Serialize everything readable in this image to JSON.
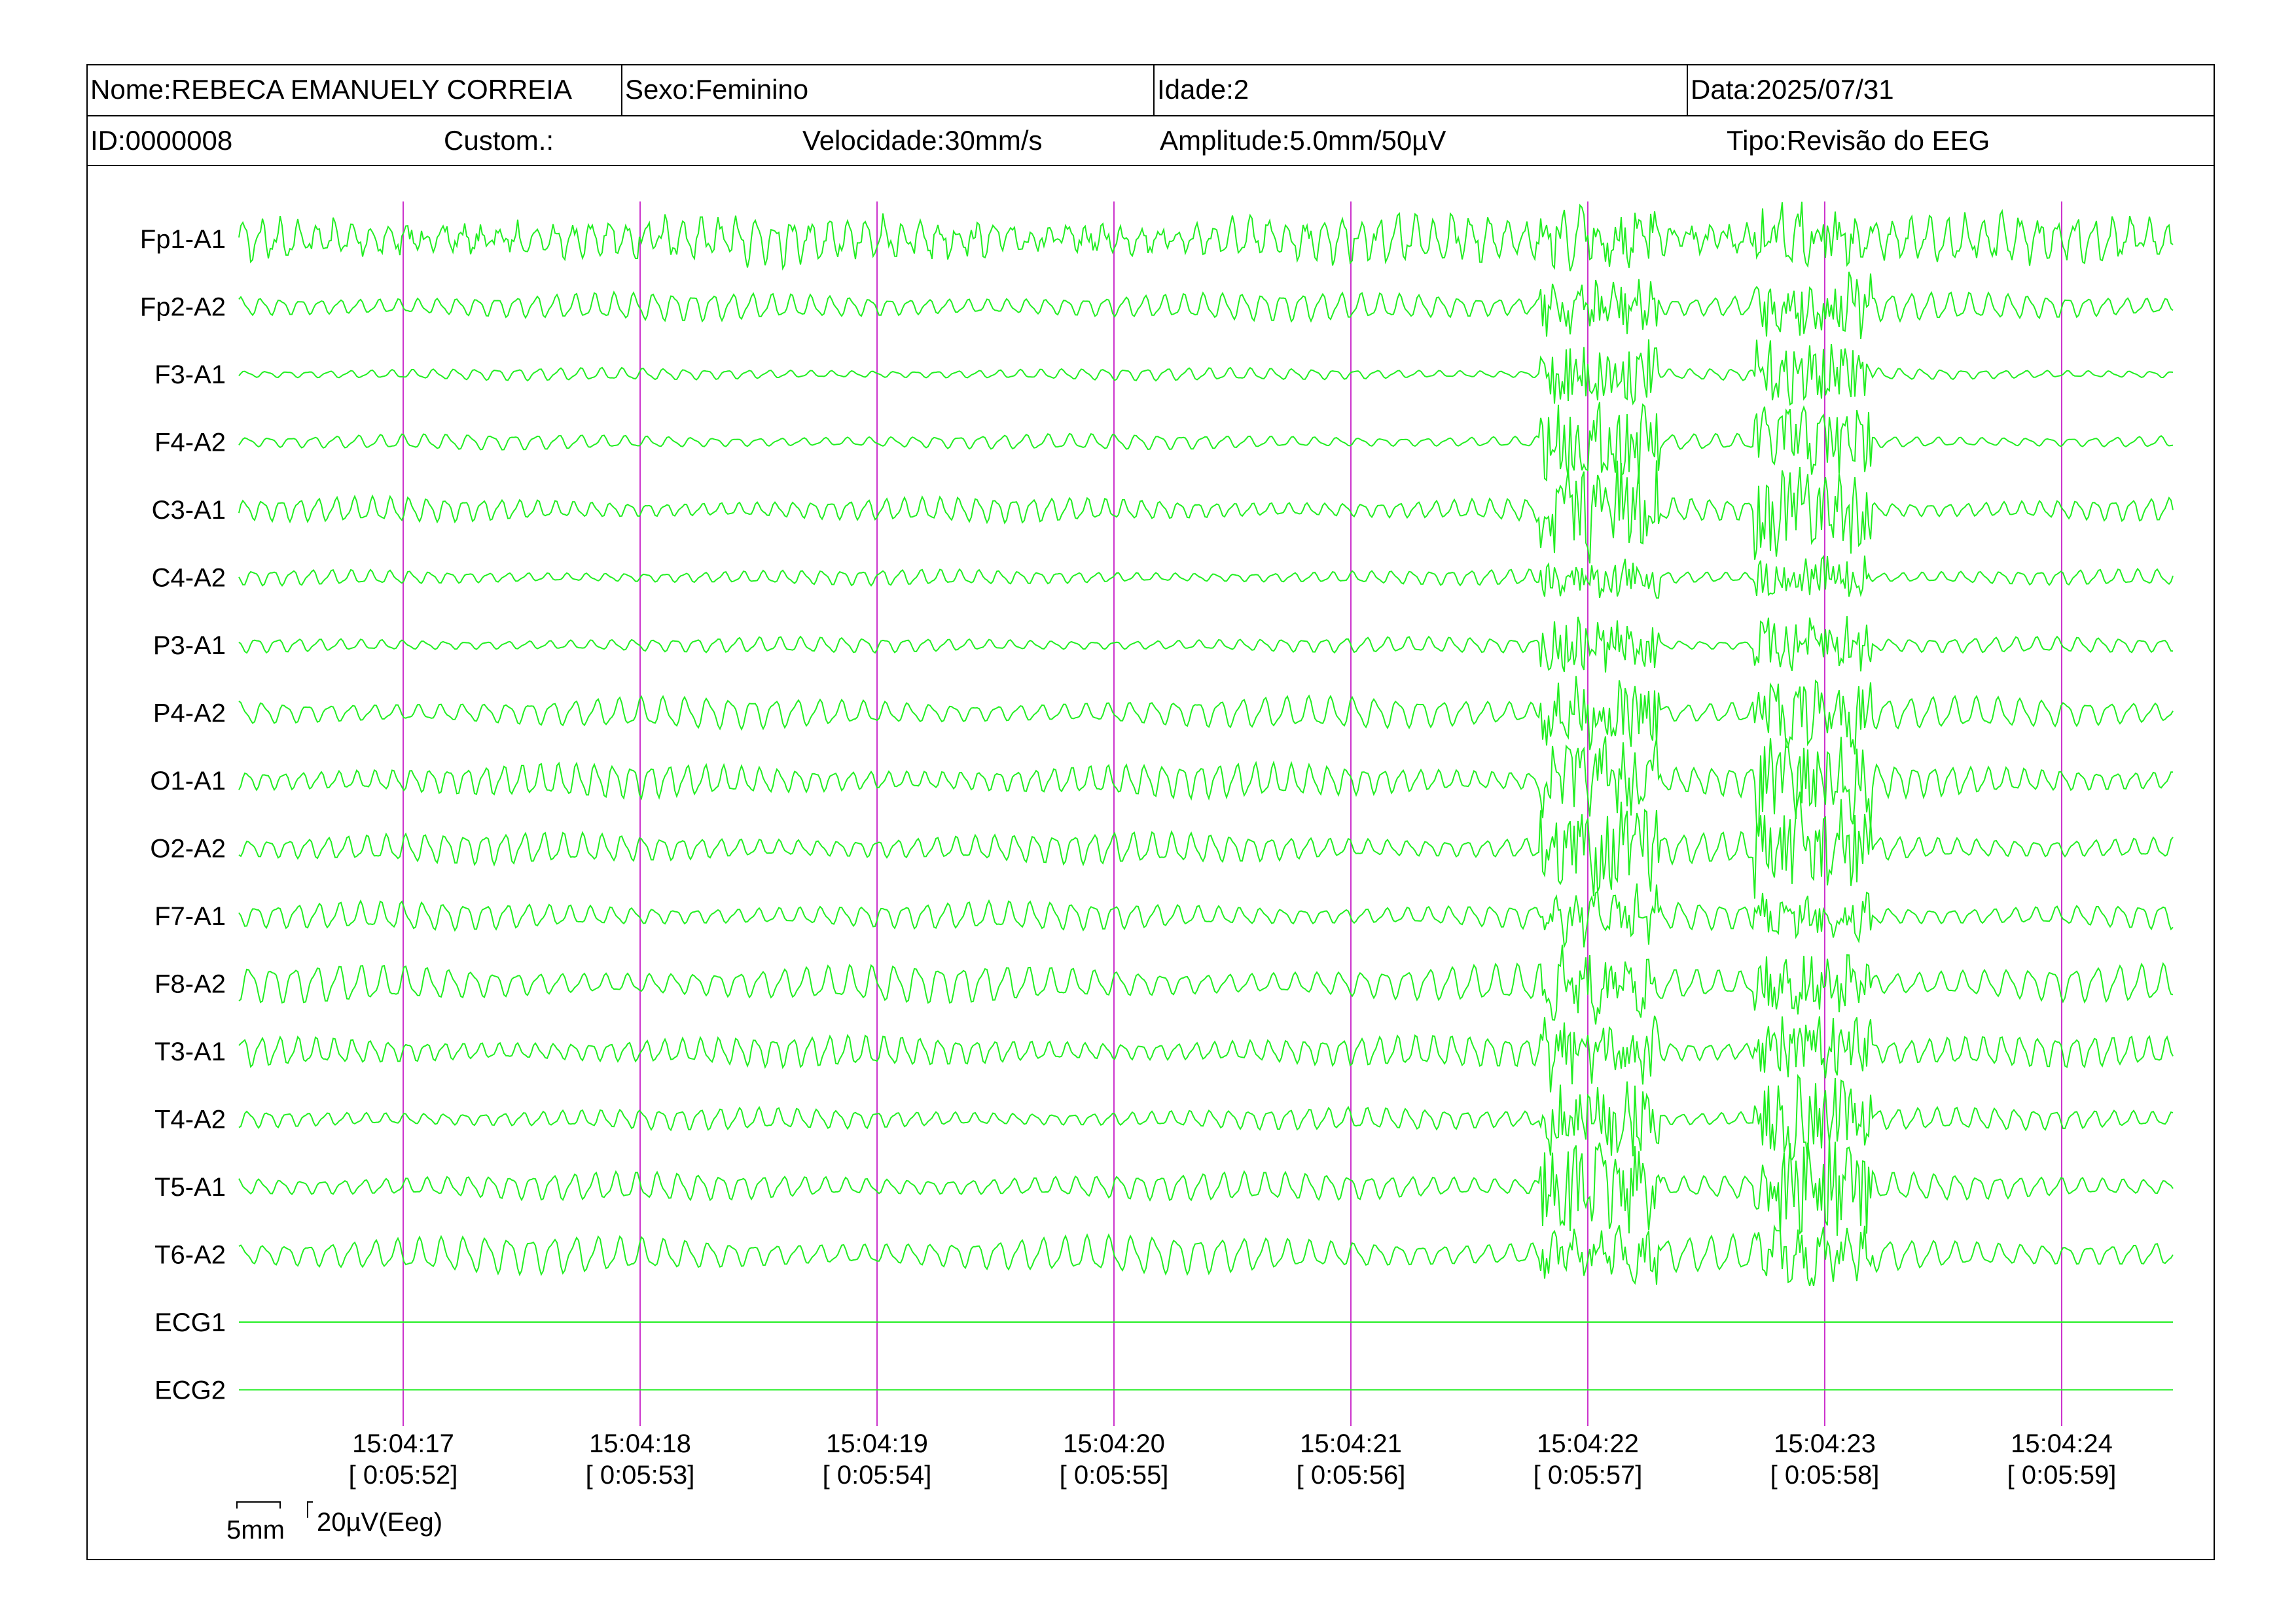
{
  "header": {
    "name": "Nome:REBECA EMANUELY CORREIA",
    "sex": "Sexo:Feminino",
    "age": "Idade:2",
    "date": "Data:2025/07/31",
    "id": "ID:0000008",
    "custom": "Custom.:",
    "speed": "Velocidade:30mm/s",
    "amplitude": "Amplitude:5.0mm/50µV",
    "type": "Tipo:Revisão do EEG"
  },
  "scale": {
    "time_label": "5mm",
    "amp_label": "20µV(Eeg)"
  },
  "colors": {
    "trace": "#22ee22",
    "time_marker": "#cc33cc",
    "border": "#000000"
  },
  "chart_data": {
    "type": "line",
    "title": "",
    "channels": [
      "Fp1-A1",
      "Fp2-A2",
      "F3-A1",
      "F4-A2",
      "C3-A1",
      "C4-A2",
      "P3-A1",
      "P4-A2",
      "O1-A1",
      "O2-A2",
      "F7-A1",
      "F8-A2",
      "T3-A1",
      "T4-A2",
      "T5-A1",
      "T6-A2",
      "ECG1",
      "ECG2"
    ],
    "time_ticks": [
      {
        "clock": "15:04:17",
        "elapsed": "[ 0:05:52]"
      },
      {
        "clock": "15:04:18",
        "elapsed": "[ 0:05:53]"
      },
      {
        "clock": "15:04:19",
        "elapsed": "[ 0:05:54]"
      },
      {
        "clock": "15:04:20",
        "elapsed": "[ 0:05:55]"
      },
      {
        "clock": "15:04:21",
        "elapsed": "[ 0:05:56]"
      },
      {
        "clock": "15:04:22",
        "elapsed": "[ 0:05:57]"
      },
      {
        "clock": "15:04:23",
        "elapsed": "[ 0:05:58]"
      },
      {
        "clock": "15:04:24",
        "elapsed": "[ 0:05:59]"
      }
    ],
    "x_range_s": [
      16.3,
      24.5
    ],
    "artifact_windows_s": [
      [
        21.8,
        22.3
      ],
      [
        22.7,
        23.2
      ]
    ],
    "ecg_flat": true,
    "grid": false
  }
}
